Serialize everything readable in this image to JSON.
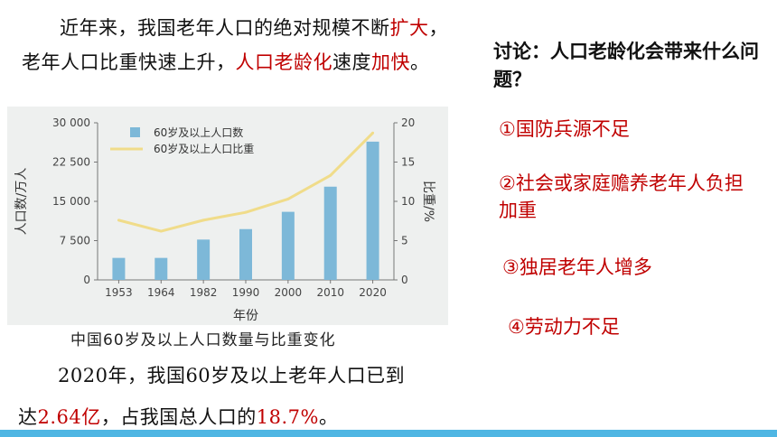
{
  "intro": {
    "p1": "近年来，我国老年人口的绝对规模不断",
    "p2": "扩大",
    "p3": "，老年人口比重快速上升，",
    "p4": "人口老龄化",
    "p5": "速度",
    "p6": "加快",
    "p7": "。"
  },
  "discussion": {
    "title": "讨论：人口老龄化会带来什么问题？",
    "points": [
      "①国防兵源不足",
      "②社会或家庭赡养老年人负担加重",
      "③独居老年人增多",
      "④劳动力不足"
    ]
  },
  "caption": "中国60岁及以上人口数量与比重变化",
  "summary": {
    "s1": "2020年，我国60岁及以上老年人口已到",
    "s2": "达",
    "s3": "2.64亿",
    "s4": "，占我国总人口的",
    "s5": "18.7%",
    "s6": "。"
  },
  "colors": {
    "accent": "#c00000",
    "bar": "#7db8d8",
    "line": "#f0dc8a",
    "bottom_bar": "#4fb6e3"
  },
  "chart_data": {
    "type": "bar",
    "categories": [
      "1953",
      "1964",
      "1982",
      "1990",
      "2000",
      "2010",
      "2020"
    ],
    "series": [
      {
        "name": "60岁及以上人口数",
        "type": "bar",
        "axis": "left",
        "values": [
          4200,
          4200,
          7700,
          9700,
          13000,
          17800,
          26400
        ]
      },
      {
        "name": "60岁及以上人口比重",
        "type": "line",
        "axis": "right",
        "values": [
          7.6,
          6.2,
          7.6,
          8.6,
          10.3,
          13.3,
          18.7
        ]
      }
    ],
    "xlabel": "年份",
    "ylabel": "人口数/万人",
    "y2label": "比重/%",
    "ylim": [
      0,
      30000
    ],
    "y2lim": [
      0,
      20
    ],
    "yticks": [
      "0",
      "7 500",
      "15 000",
      "22 500",
      "30 000"
    ],
    "y2ticks": [
      "0",
      "5",
      "10",
      "15",
      "20"
    ],
    "legend_position": "top-left"
  }
}
